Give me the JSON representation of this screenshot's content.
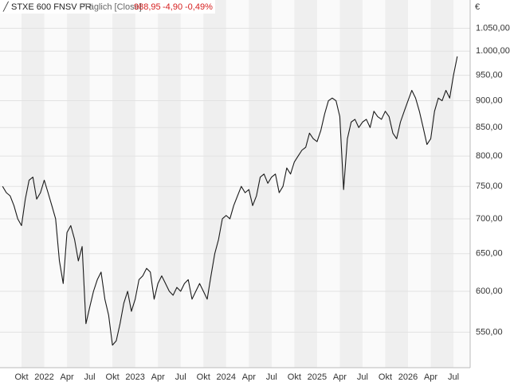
{
  "chart_data": {
    "type": "line",
    "title": "STXE 600 FNSV PR",
    "subtitle": "Täglich [Close]",
    "last_value": "988,95",
    "change": "-4,90",
    "change_percent": "-0,49%",
    "unit": "€",
    "categories": [
      null,
      null,
      null,
      null,
      null,
      "Okt",
      null,
      null,
      null,
      null,
      null,
      "2022",
      null,
      null,
      null,
      null,
      null,
      "Apr",
      null,
      null,
      null,
      null,
      null,
      "Jul",
      null,
      null,
      null,
      null,
      null,
      "Okt",
      null,
      null,
      null,
      null,
      null,
      "2023",
      null,
      null,
      null,
      null,
      null,
      "Apr",
      null,
      null,
      null,
      null,
      null,
      "Jul",
      null,
      null,
      null,
      null,
      null,
      "Okt",
      null,
      null,
      null,
      null,
      null,
      "2024",
      null,
      null,
      null,
      null,
      null,
      "Apr",
      null,
      null,
      null,
      null,
      null,
      "Jul",
      null,
      null,
      null,
      null,
      null,
      "Okt",
      null,
      null,
      null,
      null,
      null,
      "2025",
      null,
      null,
      null,
      null,
      null,
      "Apr",
      null,
      null,
      null,
      null,
      null,
      "Jul",
      null,
      null,
      null,
      null,
      null,
      "Okt",
      null,
      null,
      null,
      null,
      null,
      "2026",
      null,
      null,
      null,
      null,
      null,
      "Apr",
      null,
      null,
      null,
      null,
      null,
      "Jul",
      null
    ],
    "series": [
      {
        "name": "STXE 600 FNSV PR",
        "color": "#1a1a1a",
        "values": [
          750,
          740,
          735,
          720,
          700,
          690,
          730,
          760,
          765,
          730,
          740,
          760,
          740,
          720,
          700,
          640,
          610,
          680,
          690,
          670,
          640,
          660,
          560,
          580,
          600,
          615,
          625,
          590,
          570,
          535,
          540,
          560,
          585,
          600,
          575,
          590,
          615,
          620,
          630,
          625,
          590,
          610,
          620,
          610,
          600,
          595,
          605,
          600,
          610,
          615,
          590,
          600,
          610,
          600,
          590,
          620,
          650,
          670,
          700,
          705,
          700,
          720,
          735,
          750,
          740,
          745,
          720,
          735,
          765,
          770,
          755,
          765,
          770,
          740,
          750,
          780,
          770,
          790,
          800,
          810,
          815,
          840,
          830,
          825,
          845,
          875,
          900,
          905,
          900,
          870,
          745,
          830,
          860,
          865,
          850,
          860,
          865,
          850,
          880,
          870,
          865,
          880,
          870,
          840,
          830,
          860,
          880,
          900,
          920,
          905,
          880,
          850,
          820,
          830,
          880,
          905,
          900,
          920,
          905,
          950,
          988.95
        ]
      }
    ],
    "ylim": [
      510,
      1115
    ],
    "log": true,
    "grid": true,
    "yticks": [
      {
        "value": 550,
        "label": "550,00"
      },
      {
        "value": 600,
        "label": "600,00"
      },
      {
        "value": 650,
        "label": "650,00"
      },
      {
        "value": 700,
        "label": "700,00"
      },
      {
        "value": 750,
        "label": "750,00"
      },
      {
        "value": 800,
        "label": "800,00"
      },
      {
        "value": 850,
        "label": "850,00"
      },
      {
        "value": 900,
        "label": "900,00"
      },
      {
        "value": 950,
        "label": "950,00"
      },
      {
        "value": 1000,
        "label": "1.000,00"
      },
      {
        "value": 1050,
        "label": "1.050,00"
      }
    ]
  }
}
